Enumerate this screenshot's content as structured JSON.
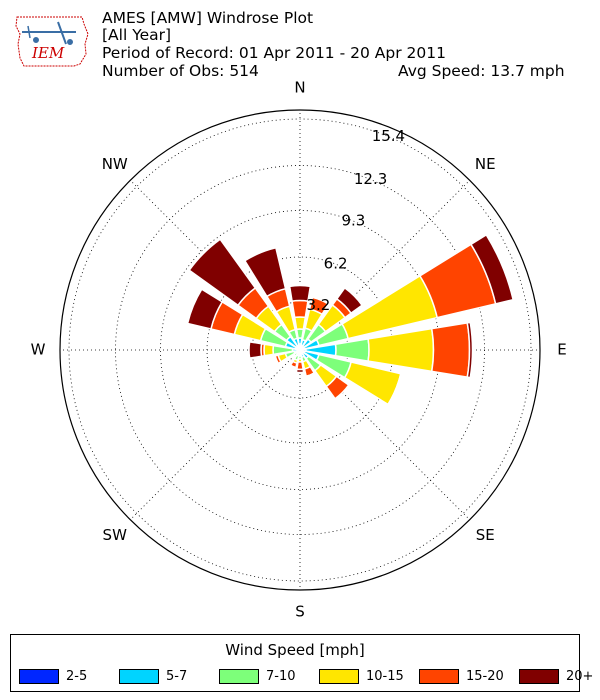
{
  "header": {
    "line1": "AMES [AMW] Windrose Plot",
    "line2": "[All Year]",
    "line3": "Period of Record: 01 Apr 2011 - 20 Apr 2011",
    "line4": "Number of Obs: 514",
    "avg_speed": "Avg Speed: 13.7 mph",
    "logo_text": "IEM"
  },
  "legend": {
    "title": "Wind Speed [mph]",
    "items": [
      {
        "label": "2-5",
        "color": "#0026ff"
      },
      {
        "label": "5-7",
        "color": "#00d4ff"
      },
      {
        "label": "7-10",
        "color": "#7dff7a"
      },
      {
        "label": "10-15",
        "color": "#ffe600"
      },
      {
        "label": "15-20",
        "color": "#ff4400"
      },
      {
        "label": "20+",
        "color": "#800000"
      }
    ]
  },
  "chart_data": {
    "type": "windrose",
    "directions": [
      "N",
      "NNE",
      "NE",
      "ENE",
      "E",
      "ESE",
      "SE",
      "SSE",
      "S",
      "SSW",
      "SW",
      "WSW",
      "W",
      "WNW",
      "NW",
      "NNW"
    ],
    "compass_labels": [
      "N",
      "NE",
      "E",
      "SE",
      "S",
      "SW",
      "W",
      "NW"
    ],
    "radial_ticks": [
      3.2,
      6.2,
      9.3,
      12.3,
      15.4
    ],
    "rmax": 16,
    "unit": "%",
    "speed_bins": [
      "2-5",
      "5-7",
      "7-10",
      "10-15",
      "15-20",
      "20+"
    ],
    "series": [
      {
        "name": "2-5",
        "values": [
          0.4,
          0.3,
          0.3,
          0.3,
          0.4,
          0.3,
          0.2,
          0.2,
          0.2,
          0.2,
          0.1,
          0.2,
          0.2,
          0.3,
          0.3,
          0.3
        ]
      },
      {
        "name": "5-7",
        "values": [
          0.4,
          0.4,
          0.6,
          1.0,
          2.0,
          1.0,
          0.5,
          0.3,
          0.2,
          0.2,
          0.2,
          0.2,
          0.3,
          0.7,
          0.8,
          0.5
        ]
      },
      {
        "name": "7-10",
        "values": [
          0.6,
          0.8,
          1.2,
          2.0,
          2.2,
          2.2,
          1.0,
          0.3,
          0.2,
          0.3,
          0.2,
          0.6,
          1.3,
          1.7,
          1.0,
          0.6
        ]
      },
      {
        "name": "10-15",
        "values": [
          0.8,
          1.3,
          1.6,
          6.1,
          4.3,
          3.4,
          1.3,
          0.5,
          0.2,
          0.2,
          0.1,
          0.5,
          0.6,
          1.8,
          1.5,
          1.6
        ]
      },
      {
        "name": "15-20",
        "values": [
          1.1,
          0.8,
          0.5,
          4.0,
          2.4,
          0.1,
          1.0,
          0.5,
          0.5,
          0.3,
          0.1,
          0.2,
          0.2,
          1.6,
          1.5,
          1.2
        ]
      },
      {
        "name": "20+",
        "values": [
          1.0,
          0.0,
          0.9,
          1.2,
          0.2,
          0.0,
          0.0,
          0.1,
          0.2,
          0.1,
          0.0,
          0.0,
          0.8,
          1.6,
          4.0,
          2.8
        ]
      }
    ]
  }
}
